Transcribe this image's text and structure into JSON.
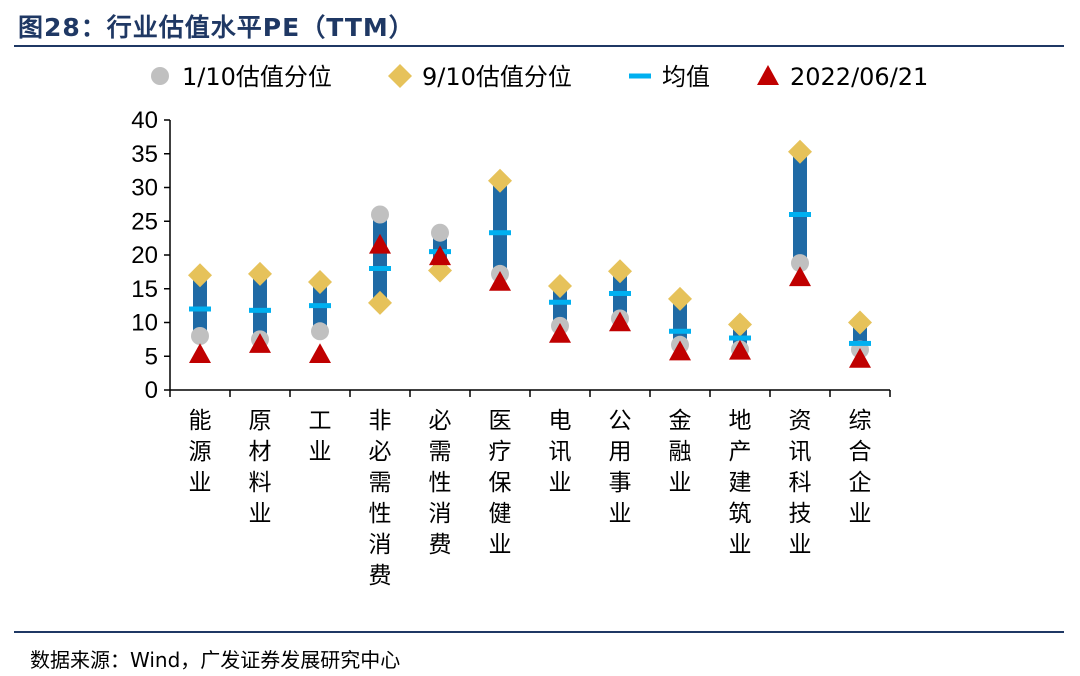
{
  "header": {
    "title": "图28：行业估值水平PE（TTM）"
  },
  "footer": {
    "source": "数据来源：Wind，广发证券发展研究中心"
  },
  "colors": {
    "bar": "#1f6aa5",
    "mean": "#00b0f0",
    "p10": "#c0c0c0",
    "p90": "#e6c25a",
    "current": "#c00000",
    "axis": "#000000"
  },
  "chart_data": {
    "type": "range",
    "title": "行业估值水平PE（TTM）",
    "ylim": [
      0,
      40
    ],
    "yticks": [
      0,
      5,
      10,
      15,
      20,
      25,
      30,
      35,
      40
    ],
    "legend": {
      "placement": "top",
      "entries": [
        "1/10估值分位",
        "9/10估值分位",
        "均值",
        "2022/06/21"
      ]
    },
    "categories": [
      "能源业",
      "原材料业",
      "工业",
      "非必需性消费",
      "必需性消费",
      "医疗保健业",
      "电讯业",
      "公用事业",
      "金融业",
      "地产建筑业",
      "资讯科技业",
      "综合企业"
    ],
    "series": [
      {
        "name": "1/10估值分位",
        "values": [
          8.0,
          7.5,
          8.7,
          26.0,
          23.3,
          17.2,
          9.5,
          10.6,
          6.7,
          6.0,
          18.8,
          6.0
        ]
      },
      {
        "name": "9/10估值分位",
        "values": [
          17.0,
          17.2,
          16.0,
          12.9,
          17.7,
          31.0,
          15.4,
          17.6,
          13.5,
          9.7,
          35.3,
          10.0
        ]
      },
      {
        "name": "均值",
        "values": [
          12.0,
          11.8,
          12.5,
          18.0,
          20.5,
          23.3,
          13.0,
          14.3,
          8.7,
          7.7,
          26.0,
          6.9
        ]
      },
      {
        "name": "2022/06/21",
        "values": [
          5.3,
          6.8,
          5.3,
          21.5,
          19.8,
          16.0,
          8.3,
          10.0,
          5.7,
          5.8,
          16.7,
          4.6
        ]
      }
    ]
  }
}
